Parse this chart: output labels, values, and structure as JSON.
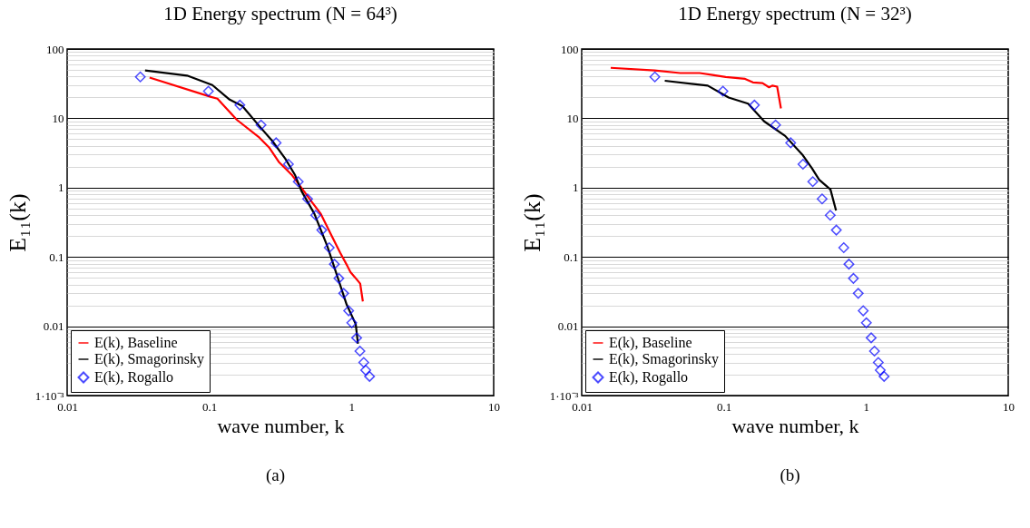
{
  "chart_data": [
    {
      "type": "line",
      "title": "1D Energy spectrum (N = 64³)",
      "xlabel": "wave number, k",
      "ylabel": "E₁₁(k)",
      "log": "xy",
      "grid": "y",
      "legend": "bottom left",
      "xlim": [
        0.01,
        10
      ],
      "ylim": [
        0.001,
        100
      ],
      "xticks": [
        0.01,
        0.1,
        1,
        10
      ],
      "yticks": [
        {
          "value": 0.001,
          "label": "1·10⁻³"
        },
        0.01,
        0.1,
        1,
        10,
        100
      ],
      "annotations": [
        "(a)"
      ],
      "series": [
        {
          "name": "E(k), Baseline",
          "type": "line",
          "color": "#ff0000",
          "x": [
            0.038,
            0.103,
            0.114,
            0.156,
            0.225,
            0.263,
            0.308,
            0.38,
            0.445,
            0.52,
            0.608,
            0.711,
            0.832,
            0.933,
            0.984,
            1.054,
            1.151,
            1.202
          ],
          "values": [
            38.7,
            20.3,
            19.2,
            9.53,
            5.27,
            3.81,
            2.35,
            1.53,
            0.99,
            0.64,
            0.419,
            0.219,
            0.115,
            0.0747,
            0.0601,
            0.0512,
            0.0412,
            0.0228
          ]
        },
        {
          "name": "E(k), Smagorinsky",
          "type": "line",
          "color": "#000000",
          "x": [
            0.0353,
            0.0697,
            0.105,
            0.139,
            0.171,
            0.225,
            0.277,
            0.342,
            0.4,
            0.445,
            0.548,
            0.676,
            0.791,
            0.925,
            1.071,
            1.11
          ],
          "values": [
            49,
            41.3,
            30.2,
            18.6,
            15,
            7.69,
            4.73,
            2.62,
            1.53,
            0.89,
            0.419,
            0.143,
            0.054,
            0.0205,
            0.0107,
            0.0056
          ]
        },
        {
          "name": "E(k), Rogallo",
          "type": "scatter",
          "marker": "diamond",
          "color": "#0000ff",
          "x": [
            0.0327,
            0.0985,
            0.164,
            0.231,
            0.295,
            0.36,
            0.422,
            0.491,
            0.56,
            0.618,
            0.697,
            0.758,
            0.815,
            0.881,
            0.955,
            1.005,
            1.087,
            1.146,
            1.219,
            1.259,
            1.34
          ],
          "values": [
            39.5,
            24.6,
            15.5,
            8,
            4.43,
            2.18,
            1.22,
            0.687,
            0.4,
            0.244,
            0.136,
            0.0787,
            0.049,
            0.0298,
            0.0167,
            0.0112,
            0.0068,
            0.00438,
            0.00301,
            0.00232,
            0.00189
          ]
        }
      ]
    },
    {
      "type": "line",
      "title": "1D Energy spectrum (N = 32³)",
      "xlabel": "wave number, k",
      "ylabel": "E₁₁(k)",
      "log": "xy",
      "grid": "y",
      "legend": "bottom left",
      "xlim": [
        0.01,
        10
      ],
      "ylim": [
        0.001,
        100
      ],
      "xticks": [
        0.01,
        0.1,
        1,
        10
      ],
      "yticks": [
        {
          "value": 0.001,
          "label": "1·10⁻³"
        },
        0.01,
        0.1,
        1,
        10,
        100
      ],
      "annotations": [
        "(b)"
      ],
      "series": [
        {
          "name": "E(k), Baseline",
          "type": "line",
          "color": "#ff0000",
          "x": [
            0.016,
            0.0325,
            0.0493,
            0.0676,
            0.0832,
            0.103,
            0.141,
            0.16,
            0.187,
            0.208,
            0.219,
            0.237,
            0.252
          ],
          "values": [
            53.5,
            49,
            45,
            45,
            42.2,
            39.5,
            37.1,
            33,
            32.2,
            28,
            29.6,
            28.6,
            13.9
          ]
        },
        {
          "name": "E(k), Smagorinsky",
          "type": "line",
          "color": "#000000",
          "x": [
            0.0384,
            0.077,
            0.108,
            0.148,
            0.192,
            0.27,
            0.36,
            0.417,
            0.468,
            0.562,
            0.615
          ],
          "values": [
            34.8,
            29.6,
            19.9,
            16.3,
            9.04,
            5.56,
            2.91,
            1.89,
            1.3,
            0.94,
            0.467
          ]
        },
        {
          "name": "E(k), Rogallo",
          "type": "scatter",
          "marker": "diamond",
          "color": "#0000ff",
          "x": [
            0.0327,
            0.0985,
            0.164,
            0.231,
            0.295,
            0.36,
            0.422,
            0.491,
            0.56,
            0.618,
            0.697,
            0.758,
            0.815,
            0.881,
            0.955,
            1.005,
            1.087,
            1.146,
            1.219,
            1.259,
            1.34
          ],
          "values": [
            39.5,
            24.6,
            15.5,
            8,
            4.43,
            2.18,
            1.22,
            0.687,
            0.4,
            0.244,
            0.136,
            0.0787,
            0.049,
            0.0298,
            0.0167,
            0.0112,
            0.0068,
            0.00438,
            0.00301,
            0.00232,
            0.00189
          ]
        }
      ]
    }
  ]
}
